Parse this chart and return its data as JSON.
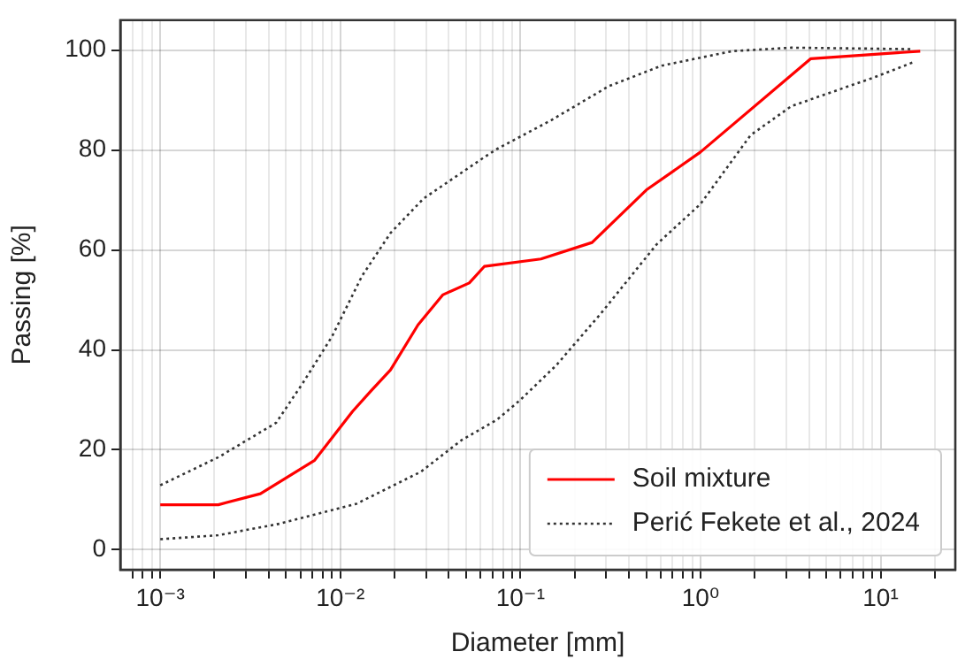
{
  "chart_data": {
    "type": "line",
    "xlabel": "Diameter [mm]",
    "ylabel": "Passing [%]",
    "log": "x",
    "grid": true,
    "legend": "bottom right",
    "marker": "none",
    "xlim": [
      0.00063,
      26
    ],
    "ylim": [
      -4,
      106
    ],
    "xticks": [
      {
        "value": 0.0007,
        "label": null
      },
      {
        "value": 0.0008,
        "label": null
      },
      {
        "value": 0.0009,
        "label": null
      },
      {
        "value": 0.001,
        "label": "10⁻³"
      },
      {
        "value": 0.002,
        "label": null
      },
      {
        "value": 0.003,
        "label": null
      },
      {
        "value": 0.004,
        "label": null
      },
      {
        "value": 0.005,
        "label": null
      },
      {
        "value": 0.006,
        "label": null
      },
      {
        "value": 0.007,
        "label": null
      },
      {
        "value": 0.008,
        "label": null
      },
      {
        "value": 0.009,
        "label": null
      },
      {
        "value": 0.01,
        "label": "10⁻²"
      },
      {
        "value": 0.02,
        "label": null
      },
      {
        "value": 0.03,
        "label": null
      },
      {
        "value": 0.04,
        "label": null
      },
      {
        "value": 0.05,
        "label": null
      },
      {
        "value": 0.06,
        "label": null
      },
      {
        "value": 0.07,
        "label": null
      },
      {
        "value": 0.08,
        "label": null
      },
      {
        "value": 0.09,
        "label": null
      },
      {
        "value": 0.1,
        "label": "10⁻¹"
      },
      {
        "value": 0.2,
        "label": null
      },
      {
        "value": 0.3,
        "label": null
      },
      {
        "value": 0.4,
        "label": null
      },
      {
        "value": 0.5,
        "label": null
      },
      {
        "value": 0.6,
        "label": null
      },
      {
        "value": 0.7,
        "label": null
      },
      {
        "value": 0.8,
        "label": null
      },
      {
        "value": 0.9,
        "label": null
      },
      {
        "value": 1,
        "label": "10⁰"
      },
      {
        "value": 2,
        "label": null
      },
      {
        "value": 3,
        "label": null
      },
      {
        "value": 4,
        "label": null
      },
      {
        "value": 5,
        "label": null
      },
      {
        "value": 6,
        "label": null
      },
      {
        "value": 7,
        "label": null
      },
      {
        "value": 8,
        "label": null
      },
      {
        "value": 9,
        "label": null
      },
      {
        "value": 10,
        "label": "10¹"
      },
      {
        "value": 20,
        "label": null
      }
    ],
    "yticks": [
      0,
      20,
      40,
      60,
      80,
      100
    ],
    "series": [
      {
        "name": "Soil mixture",
        "color": "#ff0000",
        "line_style": "solid",
        "x": [
          0.001,
          0.0021,
          0.0036,
          0.0072,
          0.0117,
          0.0148,
          0.019,
          0.027,
          0.037,
          0.052,
          0.063,
          0.13,
          0.25,
          0.5,
          1,
          4.1,
          16.6
        ],
        "values": [
          9,
          9,
          11.2,
          17.9,
          27.7,
          31.8,
          36,
          45,
          51,
          53.4,
          56.7,
          58.2,
          61.5,
          72,
          79.6,
          98.3,
          99.8
        ]
      },
      {
        "name": "Perić Fekete et al., 2024",
        "color": "#333333",
        "line_style": "dotted",
        "x": [
          0.001,
          0.0021,
          0.0044,
          0.0062,
          0.009,
          0.0132,
          0.019,
          0.029,
          0.062,
          0.074,
          0.147,
          0.31,
          0.61,
          1.5,
          3.2,
          15
        ],
        "values": [
          12.9,
          18.5,
          25.4,
          33.4,
          42.7,
          54.8,
          63.4,
          70.3,
          78.4,
          80.2,
          85.9,
          92.8,
          96.9,
          99.8,
          100.5,
          100.2
        ]
      },
      {
        "color": "#333333",
        "line_style": "dotted",
        "x": [
          0.001,
          0.0021,
          0.0046,
          0.0123,
          0.028,
          0.047,
          0.074,
          0.1,
          0.158,
          0.28,
          0.57,
          1,
          1.9,
          3.2,
          9.3,
          15
        ],
        "values": [
          2.1,
          2.9,
          5.2,
          9.2,
          15.6,
          21.9,
          26,
          30,
          36.9,
          47.3,
          61.1,
          69.2,
          83,
          88.8,
          94.6,
          97.5
        ]
      }
    ]
  }
}
